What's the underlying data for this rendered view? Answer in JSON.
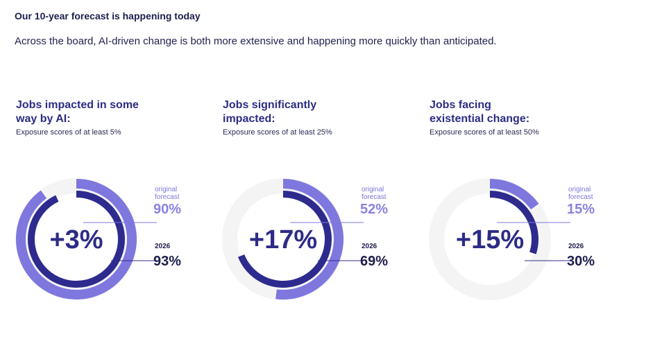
{
  "header": {
    "title": "Our 10-year forecast is happening today",
    "subtitle": "Across the board, AI-driven change is both more extensive and happening more quickly than anticipated."
  },
  "colors": {
    "original": "#7e77de",
    "current": "#2d2b8e",
    "track": "#f4f4f5",
    "text_dark": "#1d1d4e"
  },
  "chart_data": [
    {
      "type": "donut",
      "title": "Jobs impacted in some way by AI:",
      "subtitle": "Exposure scores of at least 5%",
      "center_label": "+3%",
      "series": [
        {
          "name": "original forecast",
          "value": 90,
          "label": "90%"
        },
        {
          "name": "2026",
          "value": 93,
          "label": "93%"
        }
      ]
    },
    {
      "type": "donut",
      "title": "Jobs significantly impacted:",
      "subtitle": "Exposure scores of at least 25%",
      "center_label": "+17%",
      "series": [
        {
          "name": "original forecast",
          "value": 52,
          "label": "52%"
        },
        {
          "name": "2026",
          "value": 69,
          "label": "69%"
        }
      ]
    },
    {
      "type": "donut",
      "title": "Jobs facing existential change:",
      "subtitle": "Exposure scores of at least 50%",
      "center_label": "+15%",
      "series": [
        {
          "name": "original forecast",
          "value": 15,
          "label": "15%"
        },
        {
          "name": "2026",
          "value": 30,
          "label": "30%"
        }
      ]
    }
  ],
  "labels": {
    "original_caption_line1": "original",
    "original_caption_line2": "forecast",
    "current_caption": "2026"
  }
}
